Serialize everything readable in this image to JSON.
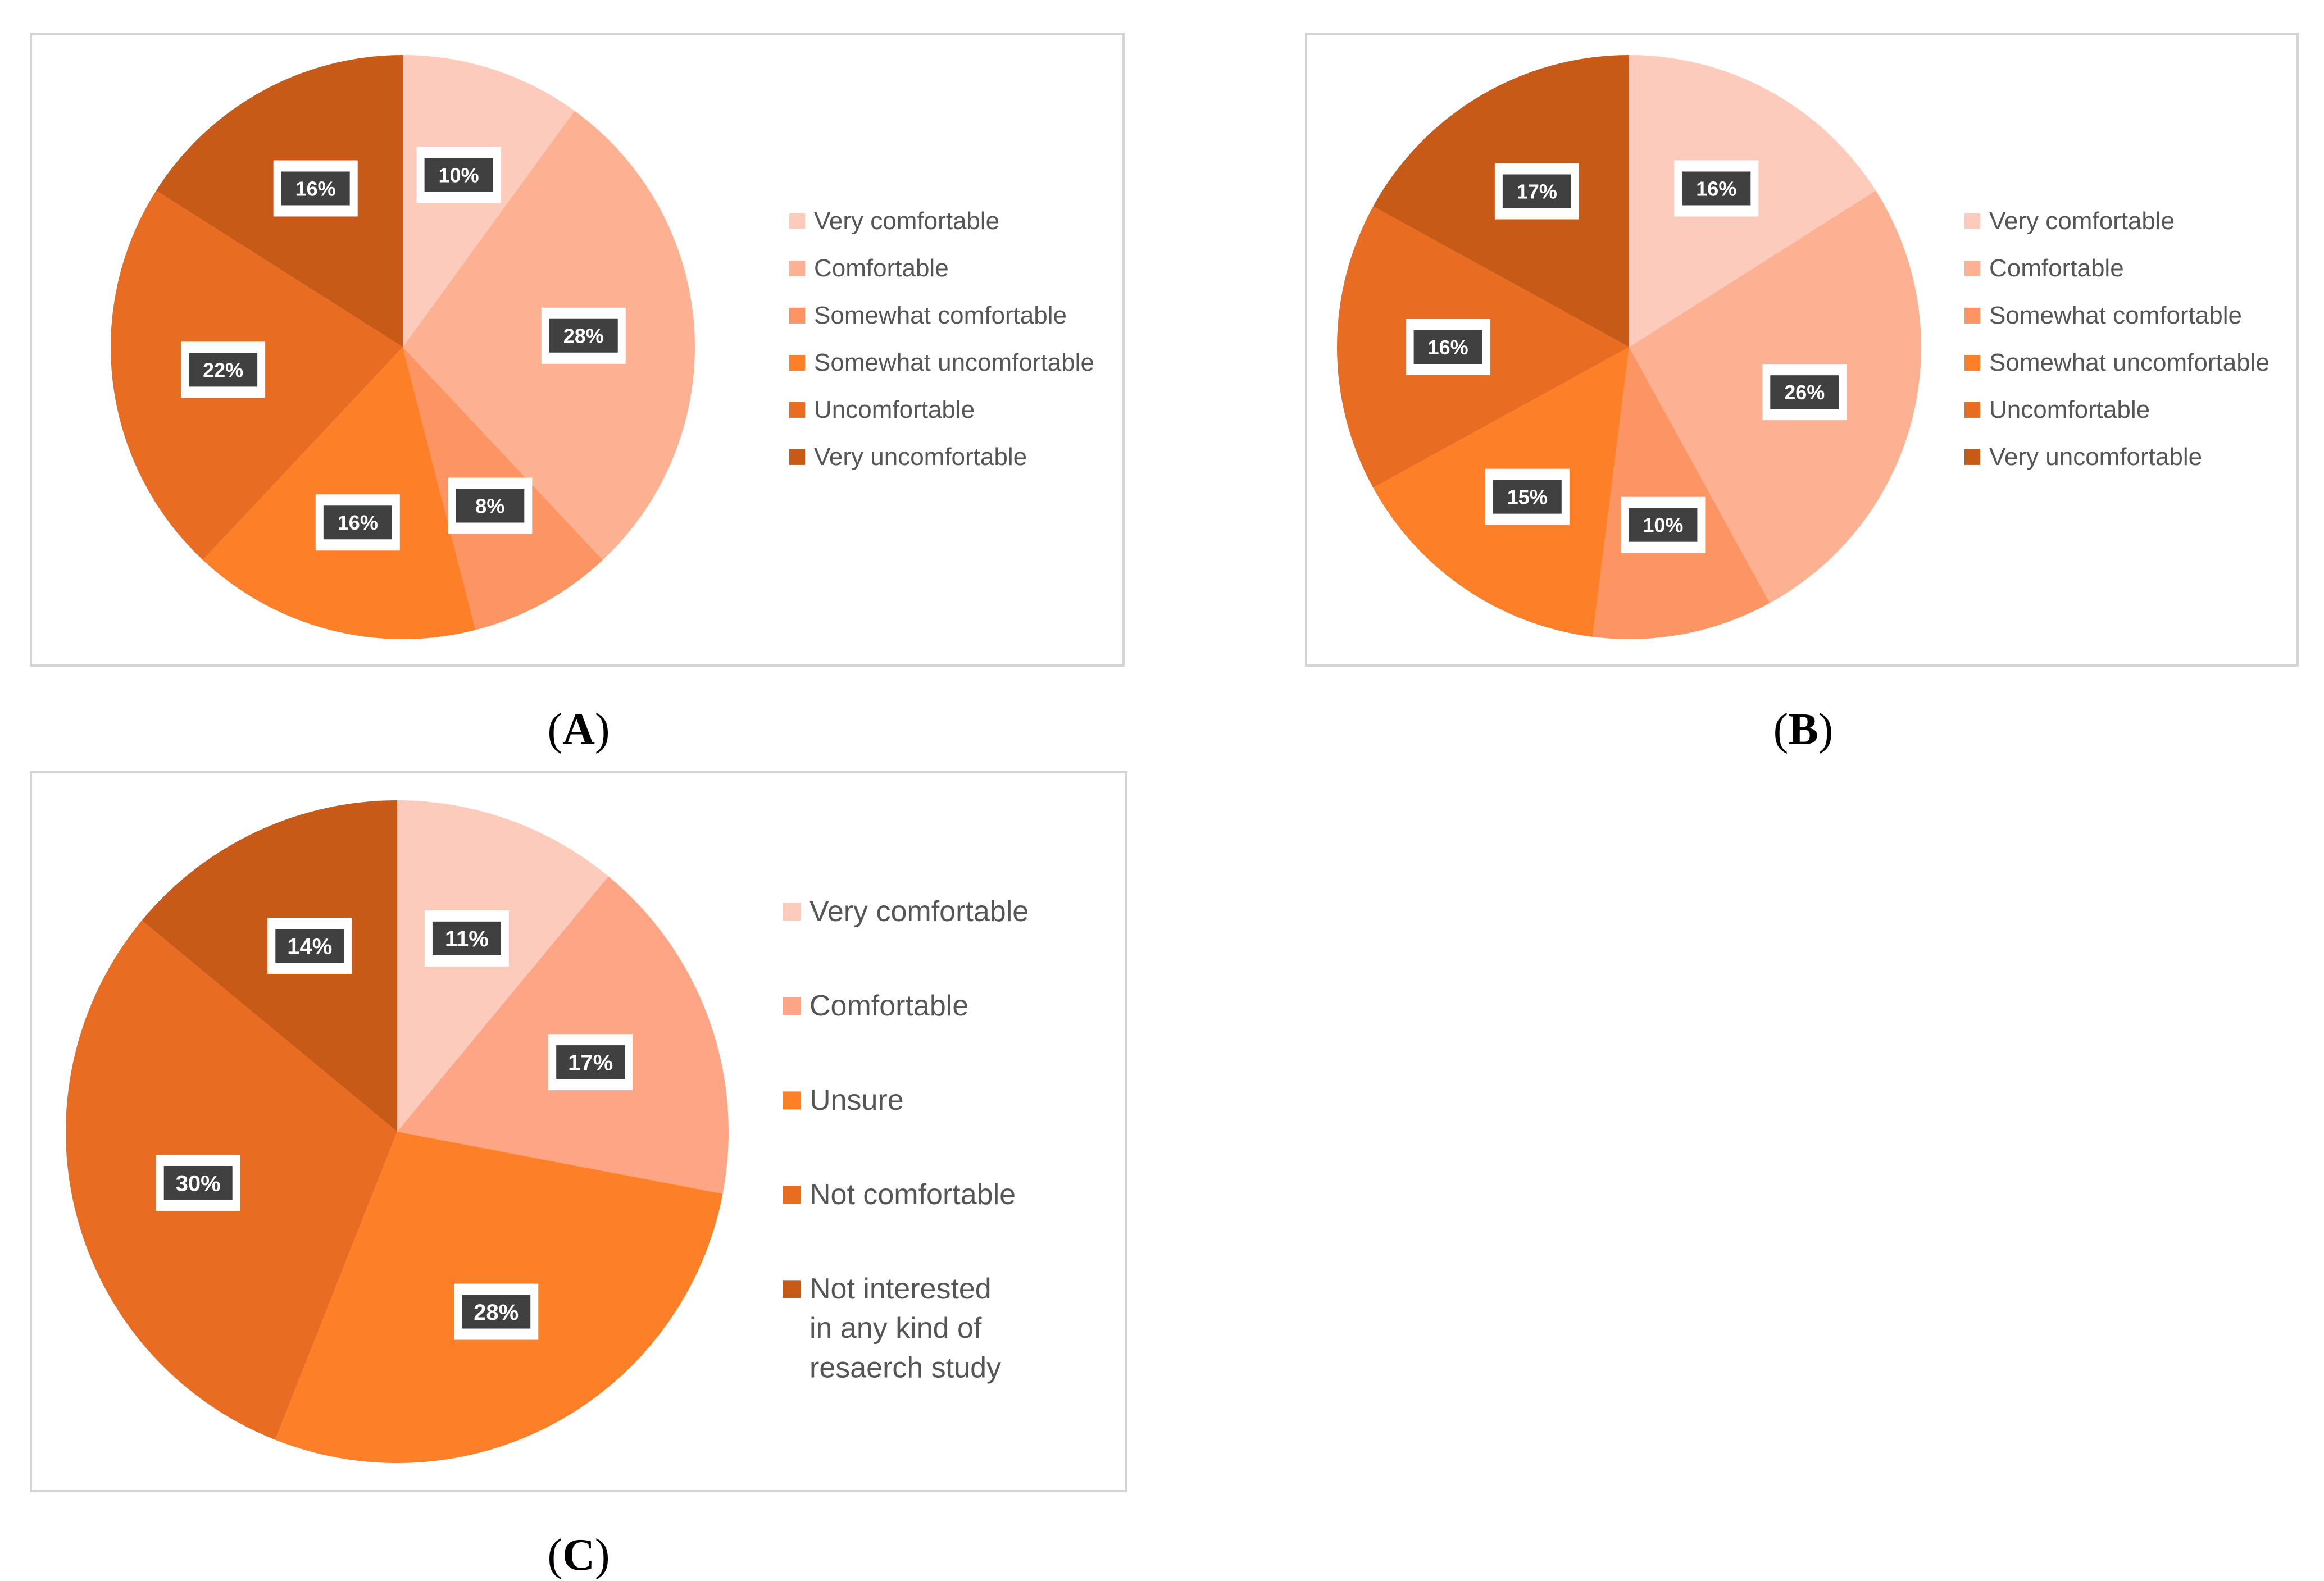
{
  "chart_data": [
    {
      "type": "pie",
      "panel_label": "A",
      "legend_position": "right",
      "categories": [
        "Very comfortable",
        "Comfortable",
        "Somewhat comfortable",
        "Somewhat uncomfortable",
        "Uncomfortable",
        "Very uncomfortable"
      ],
      "values": [
        10,
        28,
        8,
        16,
        22,
        16
      ],
      "labels": [
        "10%",
        "28%",
        "8%",
        "16%",
        "22%",
        "16%"
      ],
      "colors": [
        "#fdcbbb",
        "#fdb193",
        "#fc9563",
        "#fd7f28",
        "#e86d22",
        "#c85a18"
      ]
    },
    {
      "type": "pie",
      "panel_label": "B",
      "legend_position": "right",
      "categories": [
        "Very comfortable",
        "Comfortable",
        "Somewhat comfortable",
        "Somewhat uncomfortable",
        "Uncomfortable",
        "Very uncomfortable"
      ],
      "values": [
        16,
        26,
        10,
        15,
        16,
        17
      ],
      "labels": [
        "16%",
        "26%",
        "10%",
        "15%",
        "16%",
        "17%"
      ],
      "colors": [
        "#fdcbbb",
        "#fdb193",
        "#fc9563",
        "#fd7f28",
        "#e86d22",
        "#c85a18"
      ]
    },
    {
      "type": "pie",
      "panel_label": "C",
      "legend_position": "right",
      "categories": [
        "Very comfortable",
        "Comfortable",
        "Unsure",
        "Not comfortable",
        "Not interested in any kind of resaerch study"
      ],
      "values": [
        11,
        17,
        28,
        30,
        14
      ],
      "labels": [
        "11%",
        "17%",
        "28%",
        "30%",
        "14%"
      ],
      "colors": [
        "#fdcbbb",
        "#fda584",
        "#fd7f28",
        "#e86d22",
        "#c85a18"
      ]
    }
  ]
}
